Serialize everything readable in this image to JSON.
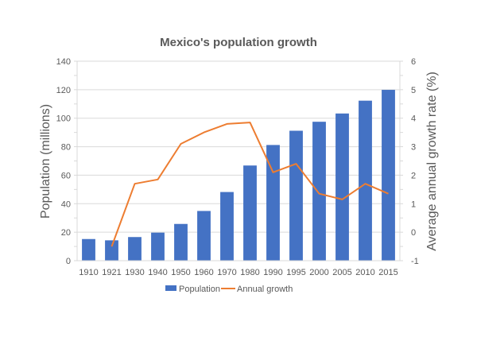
{
  "chart_data": {
    "type": "bar+line",
    "title": "Mexico's population growth",
    "categories": [
      "1910",
      "1921",
      "1930",
      "1940",
      "1950",
      "1960",
      "1970",
      "1980",
      "1990",
      "1995",
      "2000",
      "2005",
      "2010",
      "2015"
    ],
    "series": [
      {
        "name": "Population",
        "type": "bar",
        "axis": "left",
        "color": "#4472c4",
        "values": [
          15.2,
          14.3,
          16.6,
          19.7,
          25.8,
          34.9,
          48.2,
          66.8,
          81.2,
          91.2,
          97.5,
          103.3,
          112.3,
          119.9
        ]
      },
      {
        "name": "Annual growth",
        "type": "line",
        "axis": "right",
        "color": "#ed7d31",
        "values": [
          null,
          -0.5,
          1.7,
          1.85,
          3.1,
          3.5,
          3.8,
          3.85,
          2.1,
          2.4,
          1.35,
          1.15,
          1.7,
          1.35
        ]
      }
    ],
    "ylabel": "Population (millions)",
    "ylim": [
      0,
      140
    ],
    "yticks": [
      0,
      20,
      40,
      60,
      80,
      100,
      120,
      140
    ],
    "y2label": "Average annual growth rate (%)",
    "y2lim": [
      -1,
      6
    ],
    "y2ticks": [
      -1,
      0,
      1,
      2,
      3,
      4,
      5,
      6
    ],
    "grid": true,
    "legend": "bottom"
  }
}
